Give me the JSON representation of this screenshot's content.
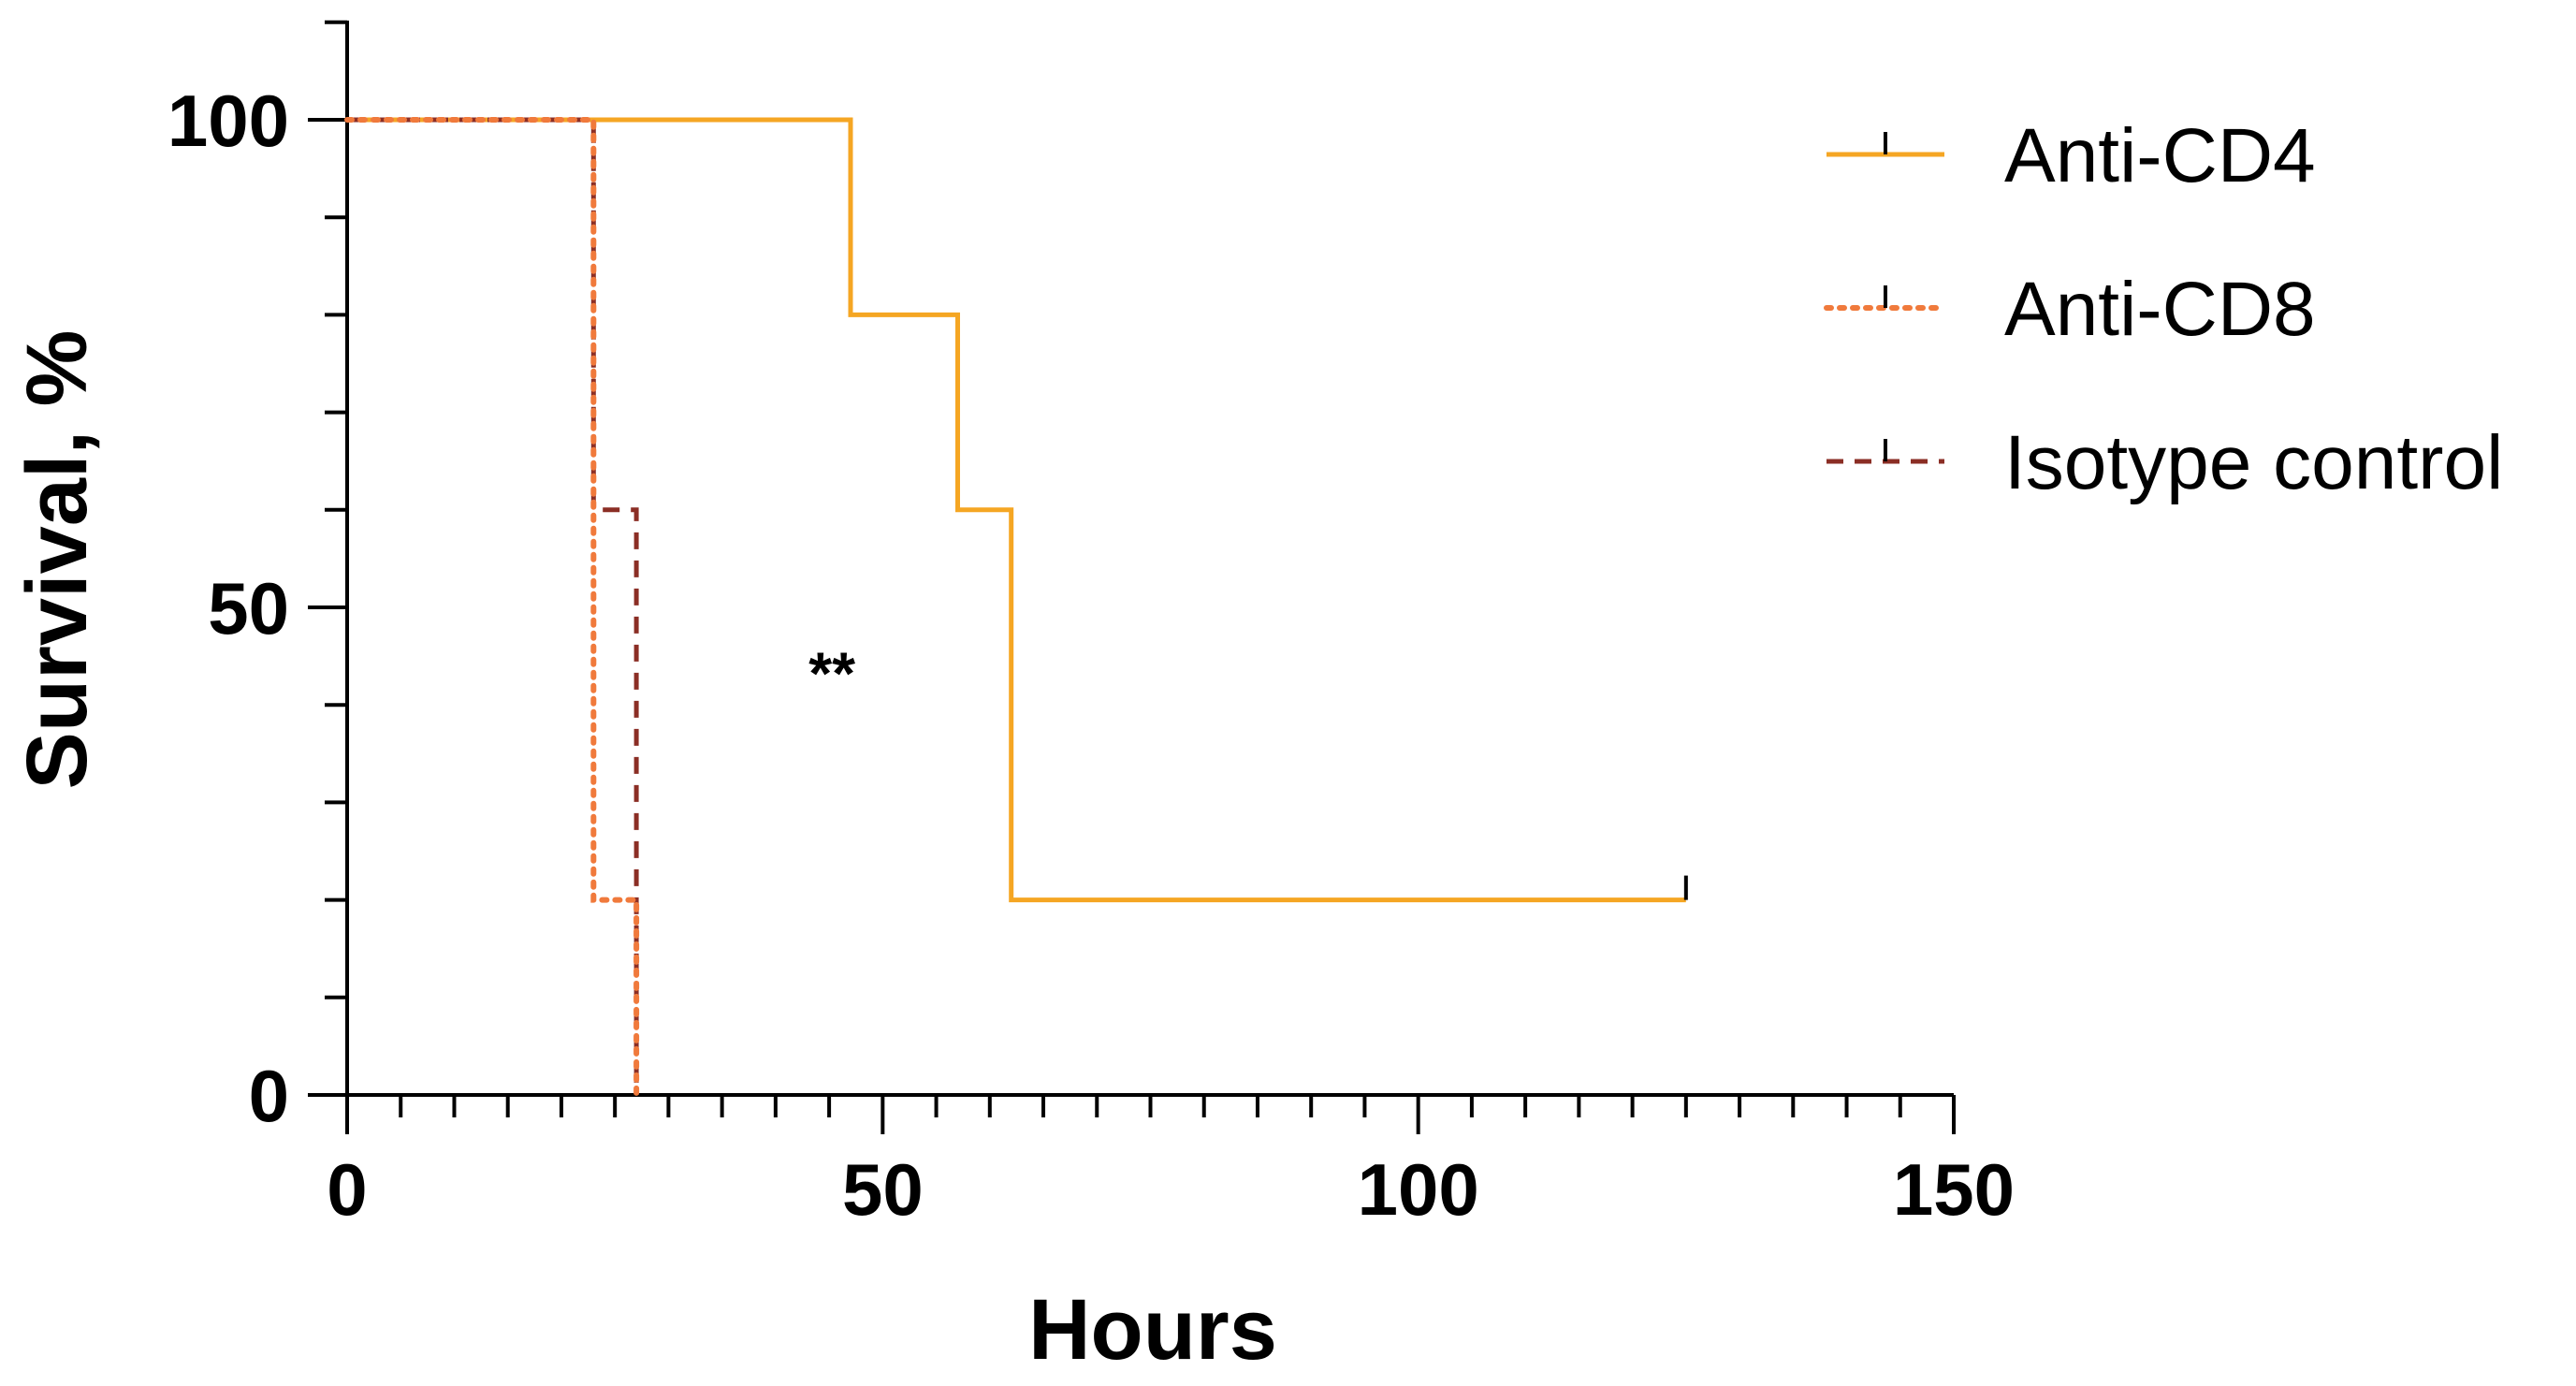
{
  "chart_data": {
    "type": "line",
    "subtype": "kaplan-meier-step",
    "title": "",
    "xlabel": "Hours",
    "ylabel": "Survival, %",
    "xlim": [
      0,
      150
    ],
    "ylim": [
      0,
      110
    ],
    "x_ticks": [
      0,
      50,
      100,
      150
    ],
    "y_ticks": [
      0,
      50,
      100
    ],
    "grid": false,
    "legend_position": "top-right",
    "series": [
      {
        "name": "Anti-CD4",
        "color": "#F5A623",
        "line_style": "solid",
        "points": [
          [
            0,
            100
          ],
          [
            47,
            100
          ],
          [
            47,
            80
          ],
          [
            57,
            80
          ],
          [
            57,
            60
          ],
          [
            62,
            60
          ],
          [
            62,
            20
          ],
          [
            125,
            20
          ]
        ],
        "censored": [
          [
            125,
            20
          ]
        ]
      },
      {
        "name": "Anti-CD8",
        "color": "#F07A3C",
        "line_style": "dotted",
        "points": [
          [
            0,
            100
          ],
          [
            23,
            100
          ],
          [
            23,
            20
          ],
          [
            27,
            20
          ],
          [
            27,
            0
          ]
        ],
        "censored": []
      },
      {
        "name": "Isotype control",
        "color": "#8B2E25",
        "line_style": "dashed",
        "points": [
          [
            0,
            100
          ],
          [
            23,
            100
          ],
          [
            23,
            60
          ],
          [
            27,
            60
          ],
          [
            27,
            0
          ]
        ],
        "censored": []
      }
    ],
    "annotations": [
      {
        "text": "**",
        "x": 45,
        "y": 44
      }
    ]
  }
}
